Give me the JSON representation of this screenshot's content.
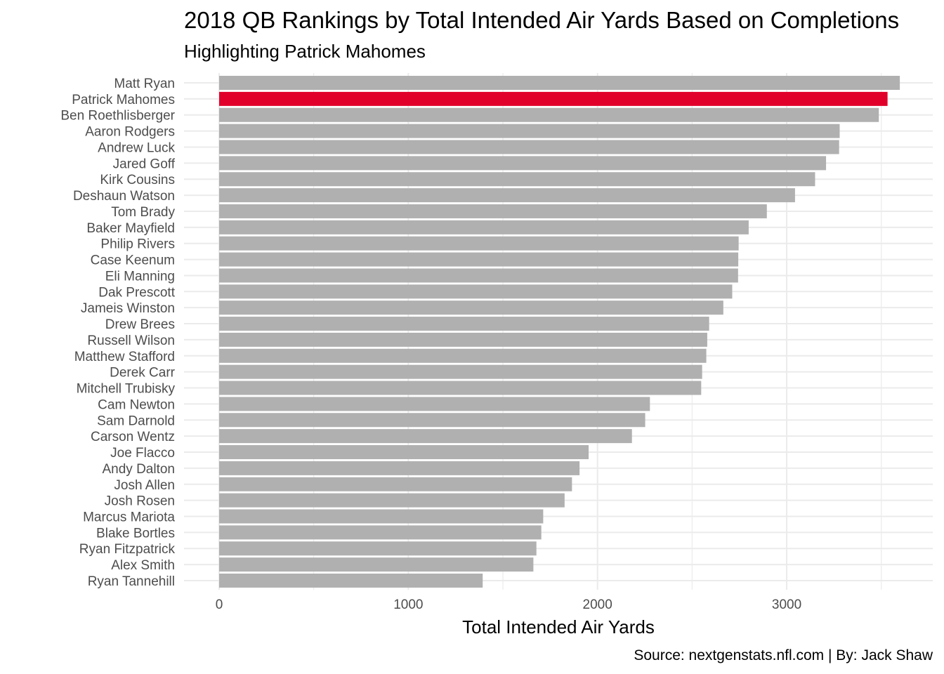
{
  "title": "2018 QB Rankings by Total Intended Air Yards Based on Completions",
  "subtitle": "Highlighting Patrick Mahomes",
  "caption": "Source: nextgenstats.nfl.com | By: Jack Shaw",
  "colors": {
    "bar": "#b0b0b0",
    "highlight": "#e0002a",
    "grid": "#ebebeb",
    "tick_label": "#4d4d4d"
  },
  "chart_data": {
    "type": "bar",
    "orientation": "horizontal",
    "title": "2018 QB Rankings by Total Intended Air Yards Based on Completions",
    "subtitle": "Highlighting Patrick Mahomes",
    "xlabel": "Total Intended Air Yards",
    "ylabel": "",
    "xlim": [
      0,
      3600
    ],
    "xticks": [
      0,
      1000,
      2000,
      3000
    ],
    "grid": true,
    "legend": "none",
    "highlight": "Patrick Mahomes",
    "categories": [
      "Matt Ryan",
      "Patrick Mahomes",
      "Ben Roethlisberger",
      "Aaron Rodgers",
      "Andrew Luck",
      "Jared Goff",
      "Kirk Cousins",
      "Deshaun Watson",
      "Tom Brady",
      "Baker Mayfield",
      "Philip Rivers",
      "Case Keenum",
      "Eli Manning",
      "Dak Prescott",
      "Jameis Winston",
      "Drew Brees",
      "Russell Wilson",
      "Matthew Stafford",
      "Derek Carr",
      "Mitchell Trubisky",
      "Cam Newton",
      "Sam Darnold",
      "Carson Wentz",
      "Joe Flacco",
      "Andy Dalton",
      "Josh Allen",
      "Josh Rosen",
      "Marcus Mariota",
      "Blake Bortles",
      "Ryan Fitzpatrick",
      "Alex Smith",
      "Ryan Tannehill"
    ],
    "values": [
      3598,
      3533,
      3487,
      3280,
      3277,
      3208,
      3150,
      3044,
      2895,
      2799,
      2746,
      2744,
      2743,
      2712,
      2665,
      2590,
      2580,
      2575,
      2553,
      2548,
      2277,
      2252,
      2182,
      1953,
      1905,
      1865,
      1826,
      1713,
      1703,
      1677,
      1661,
      1393
    ]
  }
}
